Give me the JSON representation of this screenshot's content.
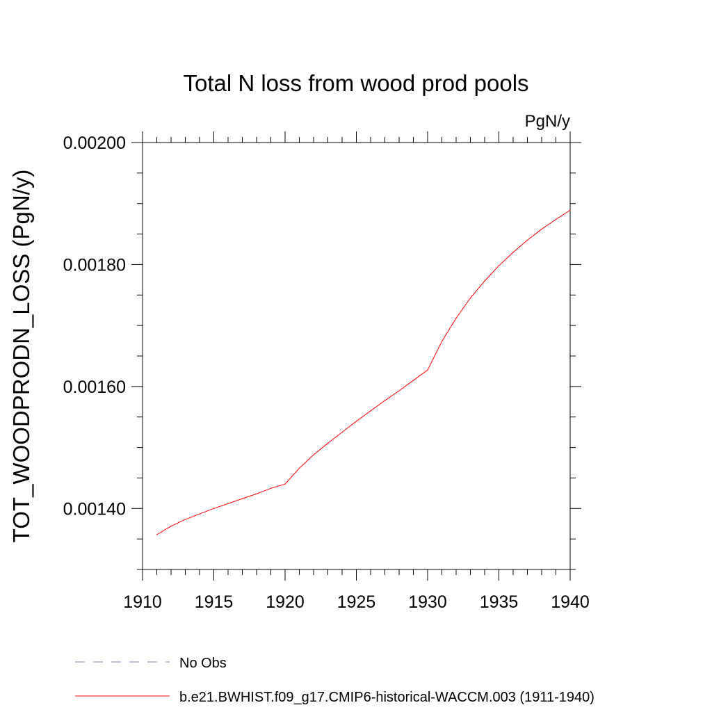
{
  "chart_data": {
    "type": "line",
    "title": "Total N loss from wood prod pools",
    "units_label": "PgN/y",
    "xlabel": "",
    "ylabel": "TOT_WOODPRODN_LOSS  (PgN/y)",
    "xlim": [
      1910,
      1940
    ],
    "ylim": [
      0.0013,
      0.002
    ],
    "x_ticks": [
      1910,
      1915,
      1920,
      1925,
      1930,
      1935,
      1940
    ],
    "x_tick_labels": [
      "1910",
      "1915",
      "1920",
      "1925",
      "1930",
      "1935",
      "1940"
    ],
    "y_ticks": [
      0.0014,
      0.0016,
      0.0018,
      0.002
    ],
    "y_tick_labels": [
      "0.00140",
      "0.00160",
      "0.00180",
      "0.00200"
    ],
    "y_minor_step": 5e-05,
    "x_minor_step": 1,
    "grid": false,
    "legend_position": "bottom",
    "series": [
      {
        "name": "b.e21.BWHIST.f09_g17.CMIP6-historical-WACCM.003 (1911-1940)",
        "color": "#ff0000",
        "style": "solid",
        "x": [
          1911,
          1912,
          1913,
          1914,
          1915,
          1916,
          1917,
          1918,
          1919,
          1920,
          1921,
          1922,
          1923,
          1924,
          1925,
          1926,
          1927,
          1928,
          1929,
          1930,
          1931,
          1932,
          1933,
          1934,
          1935,
          1936,
          1937,
          1938,
          1939,
          1940
        ],
        "y": [
          0.001357,
          0.001371,
          0.001382,
          0.001391,
          0.0014,
          0.001408,
          0.001416,
          0.001424,
          0.001433,
          0.00144,
          0.001466,
          0.001488,
          0.001507,
          0.001525,
          0.001543,
          0.00156,
          0.001577,
          0.001593,
          0.00161,
          0.001627,
          0.001674,
          0.001712,
          0.001745,
          0.001773,
          0.001798,
          0.00182,
          0.00184,
          0.001858,
          0.001874,
          0.001889
        ]
      }
    ],
    "legend": [
      {
        "label": "No Obs",
        "color": "#7f7fbf",
        "style": "dashed"
      },
      {
        "label": "b.e21.BWHIST.f09_g17.CMIP6-historical-WACCM.003 (1911-1940)",
        "color": "#ff0000",
        "style": "solid"
      }
    ]
  }
}
